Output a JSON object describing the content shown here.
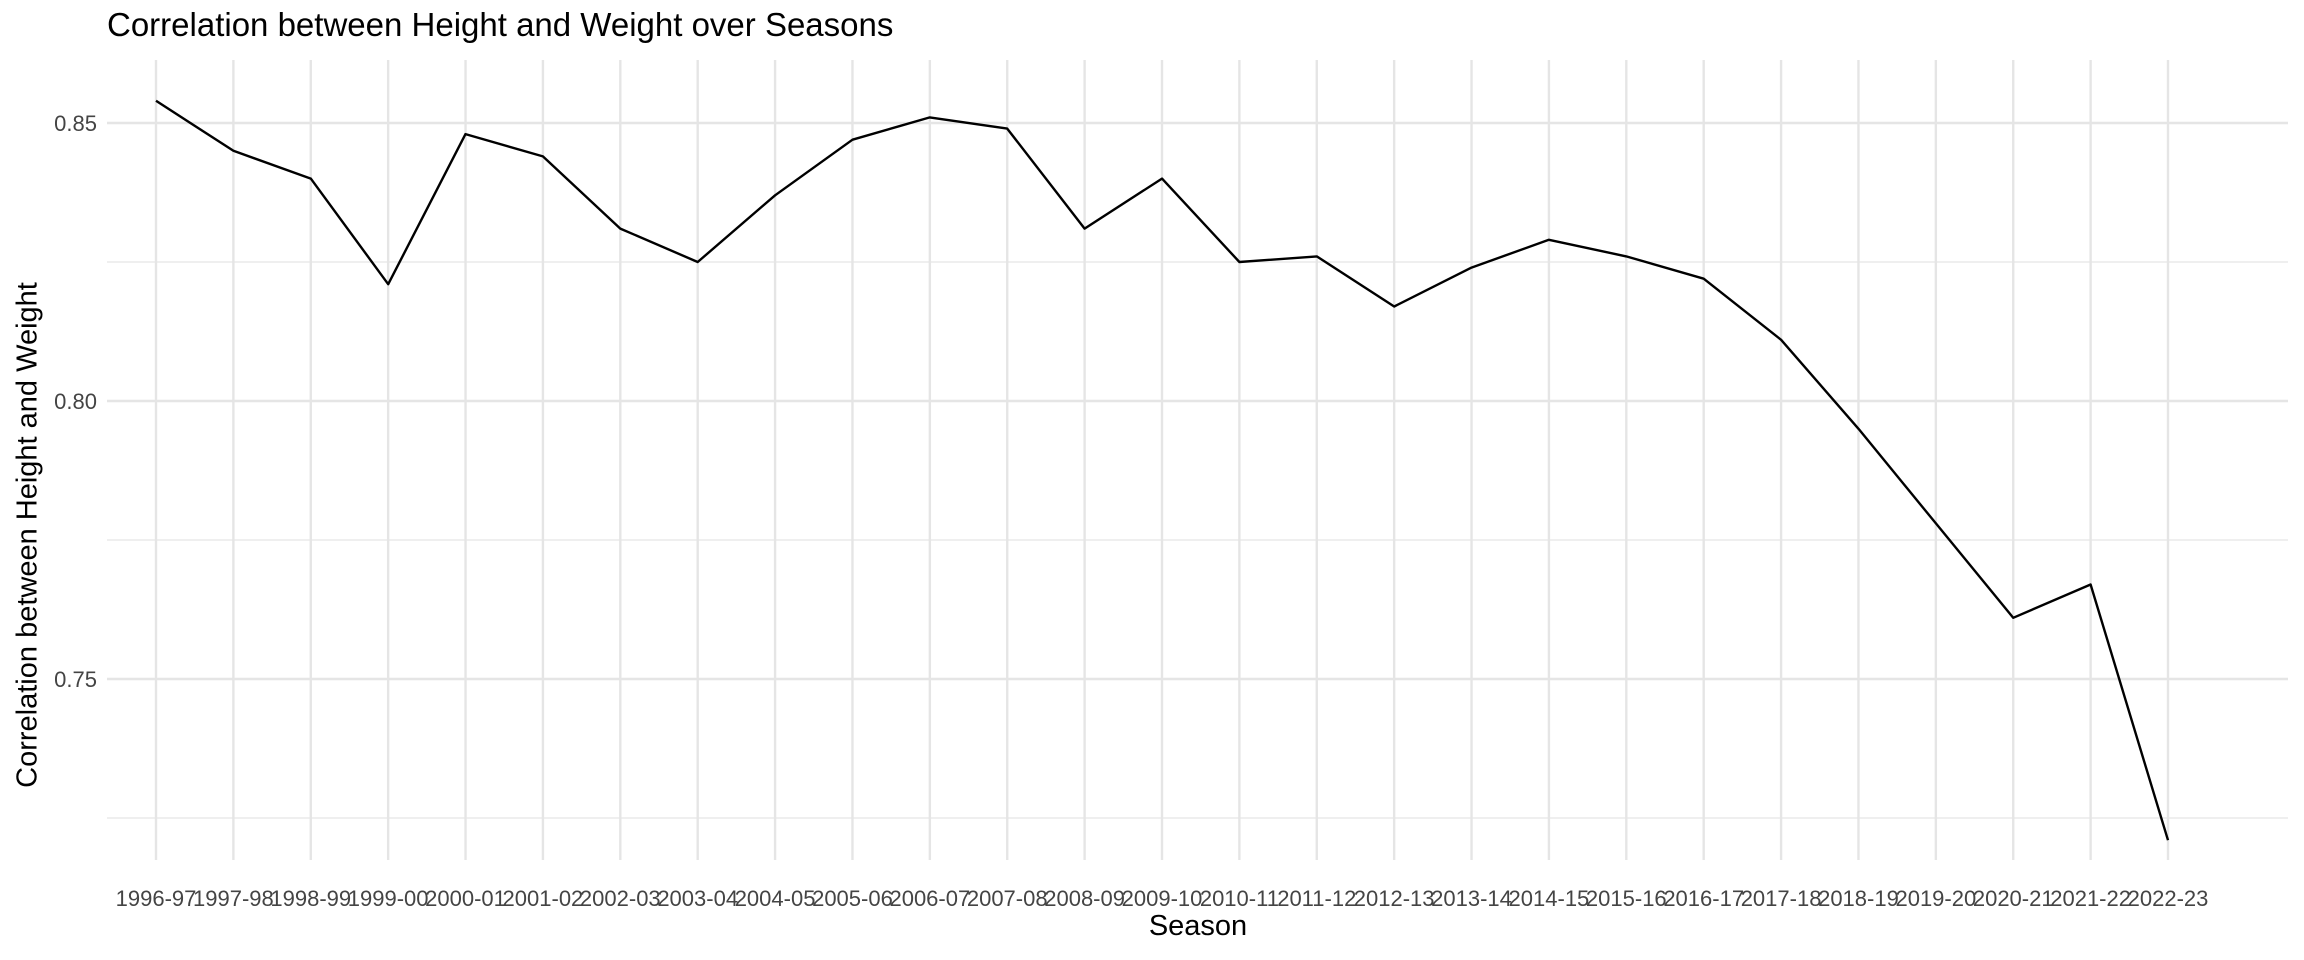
{
  "chart_data": {
    "type": "line",
    "title": "Correlation between Height and Weight over Seasons",
    "xlabel": "Season",
    "ylabel": "Correlation between Height and Weight",
    "categories": [
      "1996-97",
      "1997-98",
      "1998-99",
      "1999-00",
      "2000-01",
      "2001-02",
      "2002-03",
      "2003-04",
      "2004-05",
      "2005-06",
      "2006-07",
      "2007-08",
      "2008-09",
      "2009-10",
      "2010-11",
      "2011-12",
      "2012-13",
      "2013-14",
      "2014-15",
      "2015-16",
      "2016-17",
      "2017-18",
      "2018-19",
      "2019-20",
      "2020-21",
      "2021-22",
      "2022-23"
    ],
    "series": [
      {
        "values": [
          0.854,
          0.845,
          0.84,
          0.821,
          0.848,
          0.844,
          0.831,
          0.825,
          0.837,
          0.847,
          0.851,
          0.849,
          0.831,
          0.84,
          0.825,
          0.826,
          0.817,
          0.824,
          0.829,
          0.826,
          0.822,
          0.811,
          0.795,
          0.778,
          0.761,
          0.767,
          0.721
        ]
      }
    ],
    "yticks": [
      0.75,
      0.8,
      0.85
    ],
    "ytick_labels": [
      "0.75",
      "0.80",
      "0.85"
    ],
    "ylim": [
      0.717,
      0.859
    ],
    "grid": true,
    "line_color": "#000000",
    "grid_color": "#e5e5e5"
  }
}
